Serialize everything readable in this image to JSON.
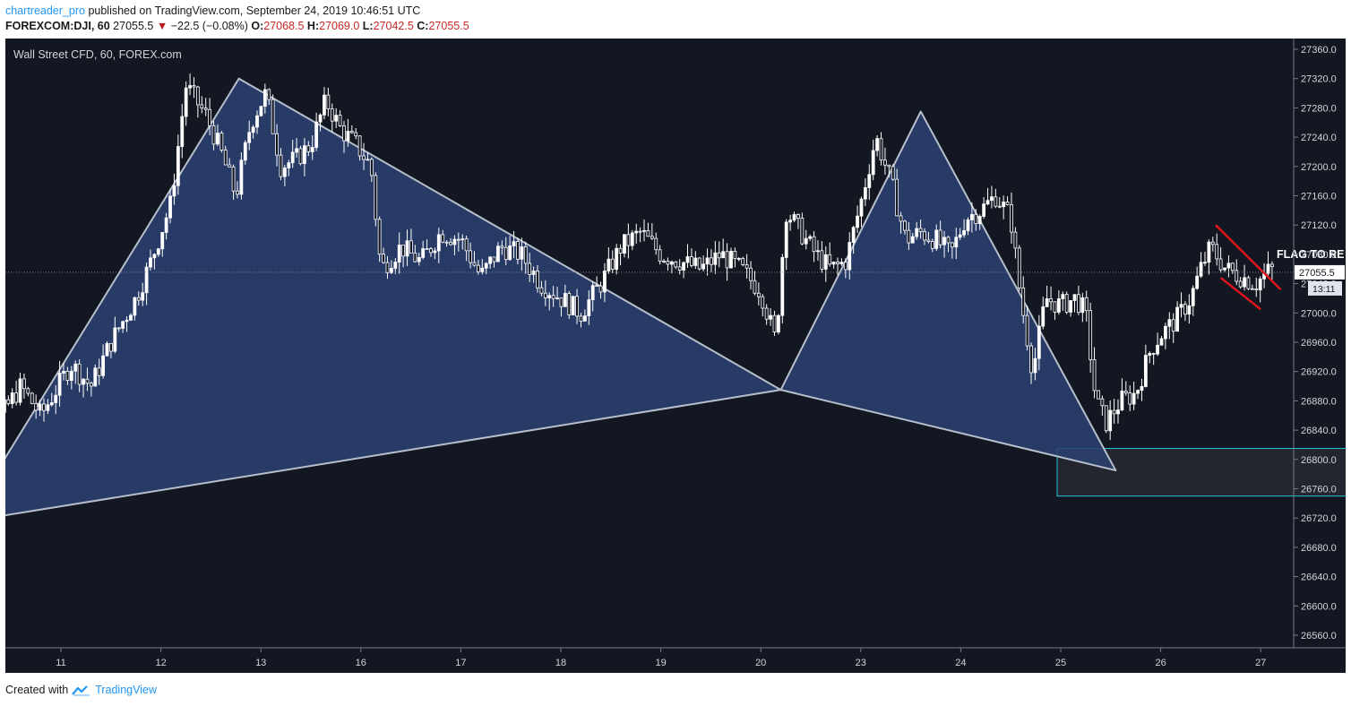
{
  "header": {
    "author": "chartreader_pro",
    "published_text": "published on TradingView.com, September 24, 2019 10:46:51 UTC",
    "symbol": "FOREXCOM:DJI, 60",
    "last": "27055.5",
    "change": "−22.5 (−0.08%)",
    "o_label": "O:",
    "o_val": "27068.5",
    "h_label": "H:",
    "h_val": "27069.0",
    "l_label": "L:",
    "l_val": "27042.5",
    "c_label": "C:",
    "c_val": "27055.5"
  },
  "footer": {
    "created_with": "Created with",
    "brand": "TradingView"
  },
  "colors": {
    "background": "#131722",
    "candle": "#ffffff",
    "pattern_fill": "#2a4170",
    "pattern_stroke": "#b7bfcc",
    "flag": "#e0151d",
    "target_box": "#26c6da",
    "price_label_bg": "#ffffff"
  },
  "chart_data": {
    "type": "candlestick",
    "title": "Wall Street CFD, 60, FOREX.com",
    "x_ticks": [
      "11",
      "12",
      "13",
      "16",
      "17",
      "18",
      "19",
      "20",
      "23",
      "24",
      "25",
      "26",
      "27"
    ],
    "y_ticks": [
      26560,
      26600,
      26640,
      26680,
      26720,
      26760,
      26800,
      26840,
      26880,
      26920,
      26960,
      27000,
      27040,
      27080,
      27120,
      27160,
      27200,
      27240,
      27280,
      27320,
      27360
    ],
    "ylim": [
      26540,
      27380
    ],
    "current_price": "27055.5",
    "countdown": "13:11",
    "annotation": "FLAG TO RE LONG",
    "price_path": [
      {
        "x": 10.0,
        "y": 26820
      },
      {
        "x": 10.15,
        "y": 26745
      },
      {
        "x": 10.35,
        "y": 26850
      },
      {
        "x": 10.6,
        "y": 26900
      },
      {
        "x": 10.8,
        "y": 26860
      },
      {
        "x": 11.1,
        "y": 26930
      },
      {
        "x": 11.3,
        "y": 26900
      },
      {
        "x": 11.5,
        "y": 26960
      },
      {
        "x": 11.75,
        "y": 27020
      },
      {
        "x": 11.9,
        "y": 27070
      },
      {
        "x": 12.1,
        "y": 27150
      },
      {
        "x": 12.25,
        "y": 27310
      },
      {
        "x": 12.45,
        "y": 27270
      },
      {
        "x": 12.6,
        "y": 27220
      },
      {
        "x": 12.75,
        "y": 27160
      },
      {
        "x": 12.9,
        "y": 27260
      },
      {
        "x": 13.05,
        "y": 27300
      },
      {
        "x": 13.2,
        "y": 27200
      },
      {
        "x": 13.35,
        "y": 27210
      },
      {
        "x": 13.5,
        "y": 27230
      },
      {
        "x": 13.65,
        "y": 27290
      },
      {
        "x": 13.8,
        "y": 27250
      },
      {
        "x": 13.95,
        "y": 27230
      },
      {
        "x": 14.1,
        "y": 27200
      },
      {
        "x": 14.2,
        "y": 27060
      },
      {
        "x": 14.4,
        "y": 27090
      },
      {
        "x": 14.6,
        "y": 27070
      },
      {
        "x": 14.8,
        "y": 27110
      },
      {
        "x": 15.0,
        "y": 27100
      },
      {
        "x": 15.2,
        "y": 27050
      },
      {
        "x": 15.4,
        "y": 27090
      },
      {
        "x": 15.6,
        "y": 27080
      },
      {
        "x": 15.8,
        "y": 27040
      },
      {
        "x": 16.0,
        "y": 27020
      },
      {
        "x": 16.2,
        "y": 27000
      },
      {
        "x": 16.4,
        "y": 27040
      },
      {
        "x": 16.6,
        "y": 27090
      },
      {
        "x": 16.8,
        "y": 27110
      },
      {
        "x": 17.0,
        "y": 27080
      },
      {
        "x": 17.2,
        "y": 27070
      },
      {
        "x": 17.4,
        "y": 27060
      },
      {
        "x": 17.6,
        "y": 27080
      },
      {
        "x": 17.8,
        "y": 27060
      },
      {
        "x": 18.0,
        "y": 27030
      },
      {
        "x": 18.15,
        "y": 26960
      },
      {
        "x": 18.25,
        "y": 27140
      },
      {
        "x": 18.4,
        "y": 27110
      },
      {
        "x": 18.55,
        "y": 27080
      },
      {
        "x": 18.7,
        "y": 27060
      },
      {
        "x": 18.85,
        "y": 27070
      },
      {
        "x": 19.0,
        "y": 27150
      },
      {
        "x": 19.15,
        "y": 27240
      },
      {
        "x": 19.3,
        "y": 27180
      },
      {
        "x": 19.45,
        "y": 27100
      },
      {
        "x": 19.6,
        "y": 27110
      },
      {
        "x": 19.75,
        "y": 27100
      },
      {
        "x": 19.9,
        "y": 27080
      },
      {
        "x": 20.05,
        "y": 27130
      },
      {
        "x": 20.2,
        "y": 27140
      },
      {
        "x": 20.35,
        "y": 27160
      },
      {
        "x": 20.5,
        "y": 27130
      },
      {
        "x": 20.6,
        "y": 27020
      },
      {
        "x": 20.72,
        "y": 26920
      },
      {
        "x": 20.85,
        "y": 27020
      },
      {
        "x": 21.0,
        "y": 27010
      },
      {
        "x": 21.15,
        "y": 27020
      },
      {
        "x": 21.25,
        "y": 27000
      },
      {
        "x": 21.35,
        "y": 26880
      },
      {
        "x": 21.45,
        "y": 26850
      },
      {
        "x": 21.6,
        "y": 26880
      },
      {
        "x": 21.75,
        "y": 26890
      },
      {
        "x": 21.9,
        "y": 26950
      },
      {
        "x": 22.0,
        "y": 26970
      },
      {
        "x": 22.15,
        "y": 26990
      },
      {
        "x": 22.3,
        "y": 27020
      },
      {
        "x": 22.4,
        "y": 27060
      },
      {
        "x": 22.5,
        "y": 27090
      },
      {
        "x": 22.65,
        "y": 27060
      },
      {
        "x": 22.8,
        "y": 27050
      },
      {
        "x": 22.95,
        "y": 27040
      },
      {
        "x": 23.1,
        "y": 27060
      },
      {
        "x": 23.15,
        "y": 27055.5
      }
    ],
    "pattern_points": [
      {
        "x": 10.05,
        "y": 26715
      },
      {
        "x": 12.78,
        "y": 27320
      },
      {
        "x": 18.2,
        "y": 26895
      },
      {
        "x": 19.6,
        "y": 27275
      },
      {
        "x": 21.55,
        "y": 26785
      }
    ],
    "flag_upper": [
      {
        "x": 22.55,
        "y": 27120
      },
      {
        "x": 23.2,
        "y": 27032
      }
    ],
    "flag_lower": [
      {
        "x": 22.6,
        "y": 27048
      },
      {
        "x": 23.0,
        "y": 27005
      }
    ],
    "target_zone": {
      "x0": 21.0,
      "x1": 24.0,
      "y0": 26750,
      "y1": 26815
    }
  }
}
